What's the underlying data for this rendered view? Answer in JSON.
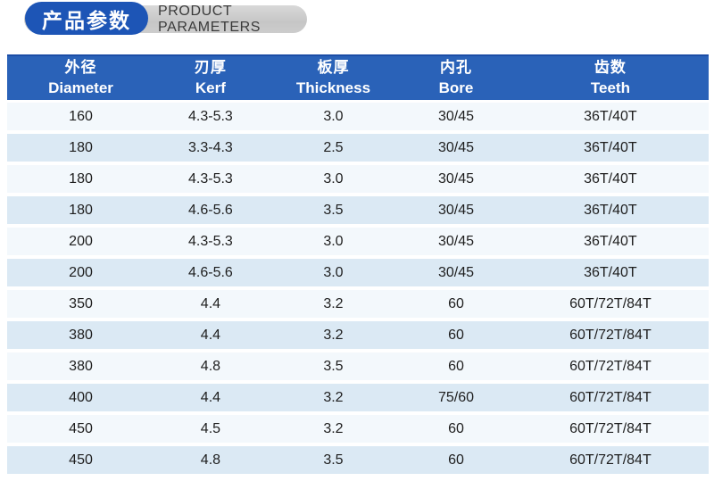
{
  "header": {
    "title_zh": "产品参数",
    "title_en": "PRODUCT PARAMETERS"
  },
  "colors": {
    "accent_blue": "#1d55b6",
    "table_header_blue": "#2a62b8",
    "row_light": "#f3f8fc",
    "row_dark": "#dbe9f4",
    "capsule_gray": "#c9c9c9"
  },
  "table": {
    "columns": [
      {
        "zh": "外径",
        "en": "Diameter"
      },
      {
        "zh": "刃厚",
        "en": "Kerf"
      },
      {
        "zh": "板厚",
        "en": "Thickness"
      },
      {
        "zh": "内孔",
        "en": "Bore"
      },
      {
        "zh": "齿数",
        "en": "Teeth"
      }
    ],
    "rows": [
      [
        "160",
        "4.3-5.3",
        "3.0",
        "30/45",
        "36T/40T"
      ],
      [
        "180",
        "3.3-4.3",
        "2.5",
        "30/45",
        "36T/40T"
      ],
      [
        "180",
        "4.3-5.3",
        "3.0",
        "30/45",
        "36T/40T"
      ],
      [
        "180",
        "4.6-5.6",
        "3.5",
        "30/45",
        "36T/40T"
      ],
      [
        "200",
        "4.3-5.3",
        "3.0",
        "30/45",
        "36T/40T"
      ],
      [
        "200",
        "4.6-5.6",
        "3.0",
        "30/45",
        "36T/40T"
      ],
      [
        "350",
        "4.4",
        "3.2",
        "60",
        "60T/72T/84T"
      ],
      [
        "380",
        "4.4",
        "3.2",
        "60",
        "60T/72T/84T"
      ],
      [
        "380",
        "4.8",
        "3.5",
        "60",
        "60T/72T/84T"
      ],
      [
        "400",
        "4.4",
        "3.2",
        "75/60",
        "60T/72T/84T"
      ],
      [
        "450",
        "4.5",
        "3.2",
        "60",
        "60T/72T/84T"
      ],
      [
        "450",
        "4.8",
        "3.5",
        "60",
        "60T/72T/84T"
      ]
    ]
  }
}
